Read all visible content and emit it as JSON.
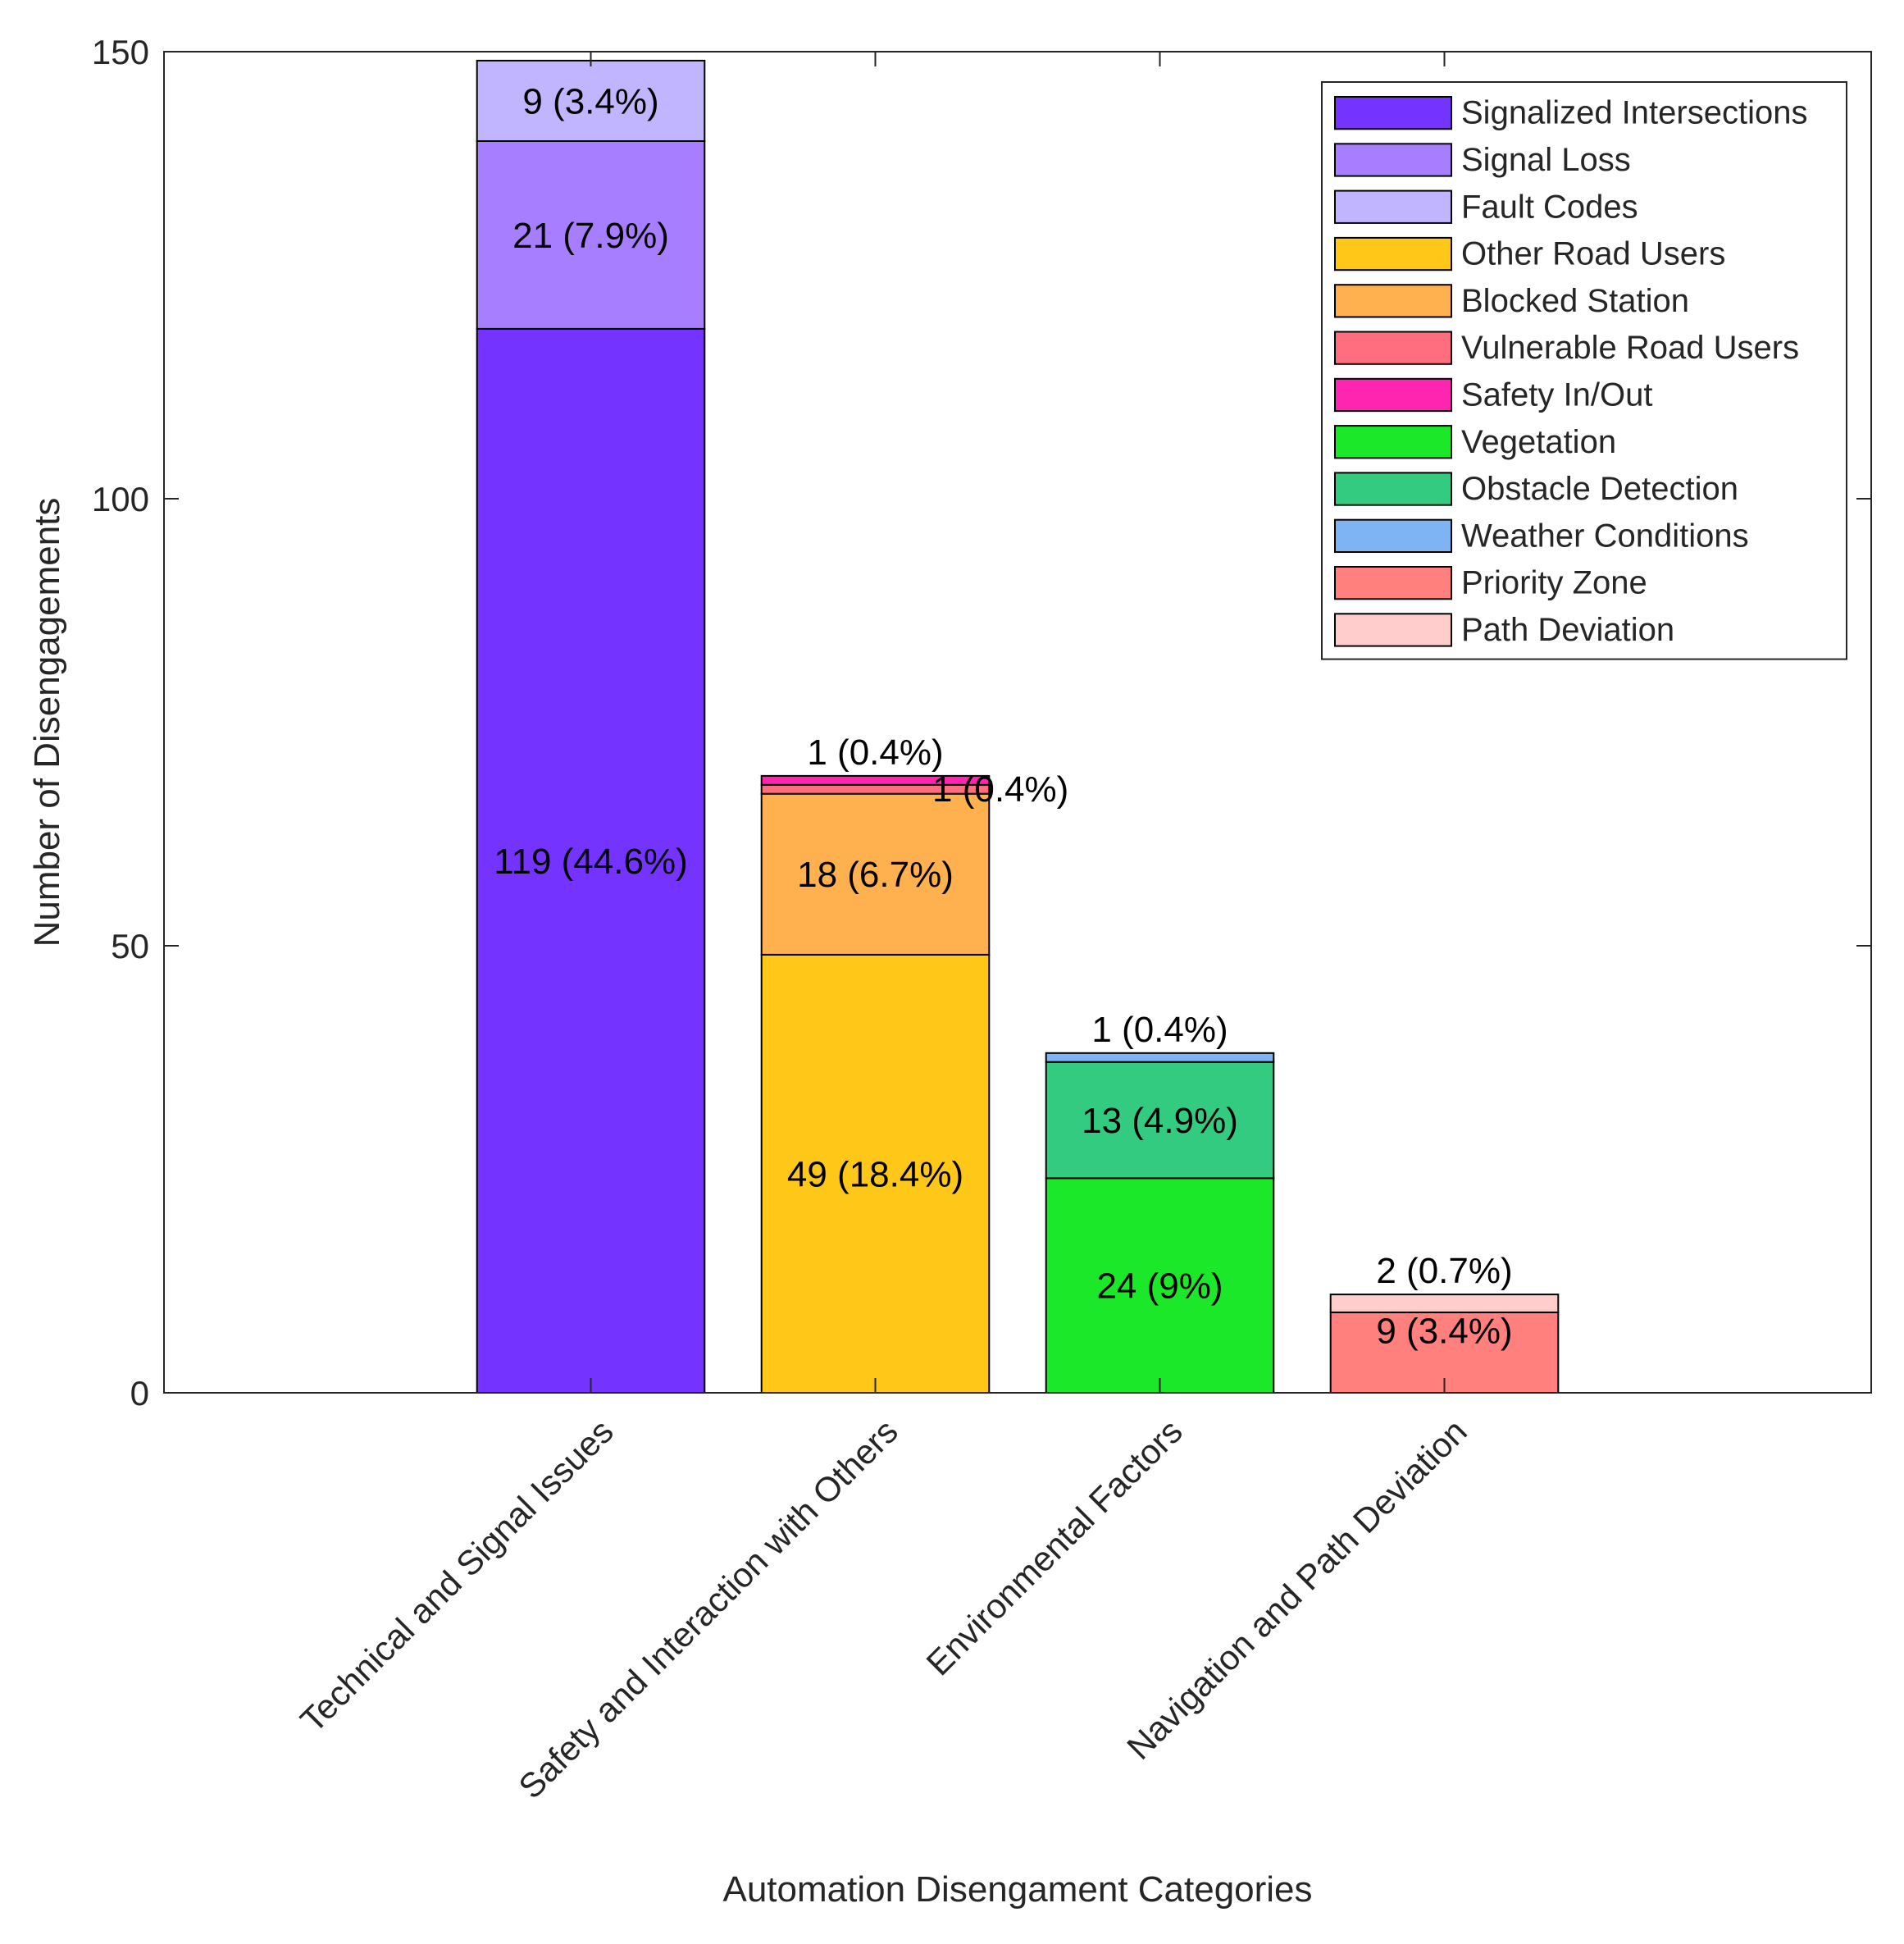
{
  "chart_data": {
    "type": "bar",
    "stacked": true,
    "title": "",
    "xlabel": "Automation Disengament Categories",
    "ylabel": "Number of Disengagements",
    "ylim": [
      0,
      150
    ],
    "yticks": [
      0,
      50,
      100,
      150
    ],
    "grid": false,
    "legend_position": "top-right",
    "categories": [
      "Technical and Signal Issues",
      "Safety and Interaction with Others",
      "Environmental Factors",
      "Navigation and Path Deviation"
    ],
    "series": [
      {
        "name": "Signalized Intersections",
        "color": "#7433FF",
        "values": [
          119,
          0,
          0,
          0
        ],
        "labels": [
          "119 (44.6%)",
          "",
          "",
          ""
        ]
      },
      {
        "name": "Signal Loss",
        "color": "#A77EFF",
        "values": [
          21,
          0,
          0,
          0
        ],
        "labels": [
          "21 (7.9%)",
          "",
          "",
          ""
        ]
      },
      {
        "name": "Fault Codes",
        "color": "#C2B5FF",
        "values": [
          9,
          0,
          0,
          0
        ],
        "labels": [
          "9 (3.4%)",
          "",
          "",
          ""
        ]
      },
      {
        "name": "Other Road Users",
        "color": "#FFC819",
        "values": [
          0,
          49,
          0,
          0
        ],
        "labels": [
          "",
          "49 (18.4%)",
          "",
          ""
        ]
      },
      {
        "name": "Blocked Station",
        "color": "#FFB04F",
        "values": [
          0,
          18,
          0,
          0
        ],
        "labels": [
          "",
          "18 (6.7%)",
          "",
          ""
        ]
      },
      {
        "name": "Vulnerable Road Users",
        "color": "#FF6E7E",
        "values": [
          0,
          1,
          0,
          0
        ],
        "labels": [
          "",
          "1 (0.4%)",
          "",
          ""
        ]
      },
      {
        "name": "Safety In/Out",
        "color": "#FF25B1",
        "values": [
          0,
          1,
          0,
          0
        ],
        "labels": [
          "",
          "1 (0.4%)",
          "",
          ""
        ]
      },
      {
        "name": "Vegetation",
        "color": "#1CE82A",
        "values": [
          0,
          0,
          24,
          0
        ],
        "labels": [
          "",
          "",
          "24 (9%)",
          ""
        ]
      },
      {
        "name": "Obstacle Detection",
        "color": "#32CB80",
        "values": [
          0,
          0,
          13,
          0
        ],
        "labels": [
          "",
          "",
          "13 (4.9%)",
          ""
        ]
      },
      {
        "name": "Weather Conditions",
        "color": "#7EB3F4",
        "values": [
          0,
          0,
          1,
          0
        ],
        "labels": [
          "",
          "",
          "1 (0.4%)",
          ""
        ]
      },
      {
        "name": "Priority Zone",
        "color": "#FF807D",
        "values": [
          0,
          0,
          0,
          9
        ],
        "labels": [
          "",
          "",
          "",
          "9 (3.4%)"
        ]
      },
      {
        "name": "Path Deviation",
        "color": "#FFCDCC",
        "values": [
          0,
          0,
          0,
          2
        ],
        "labels": [
          "",
          "",
          "",
          "2 (0.7%)"
        ]
      }
    ]
  }
}
